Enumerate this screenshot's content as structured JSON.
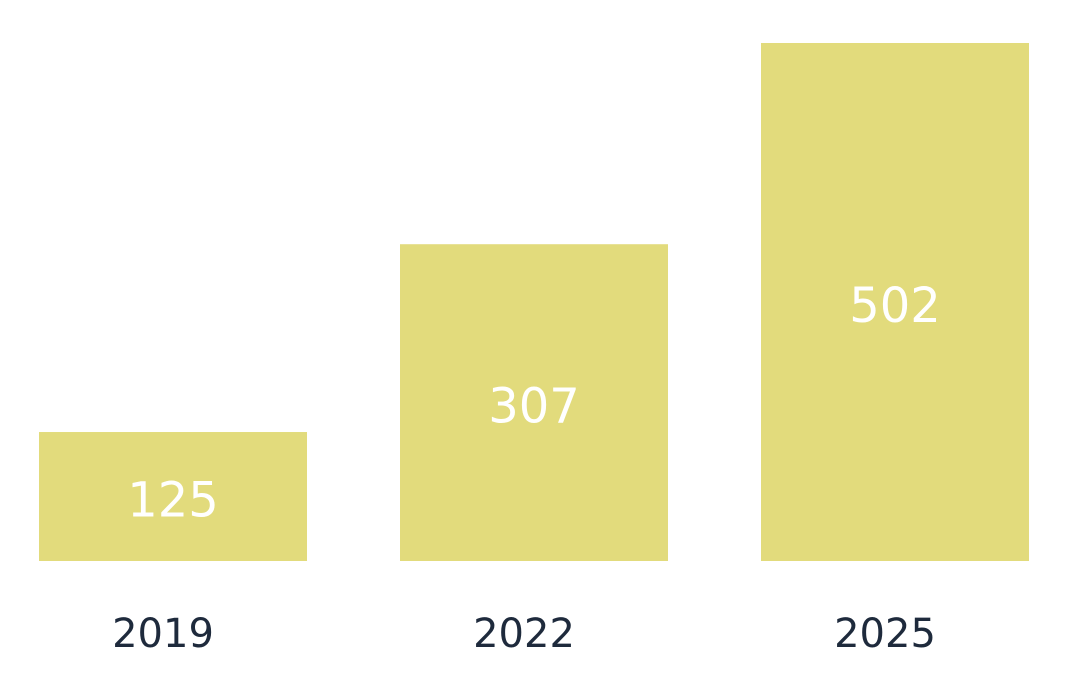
{
  "chart_data": {
    "type": "bar",
    "categories": [
      "2019",
      "2022",
      "2025"
    ],
    "values": [
      125,
      307,
      502
    ],
    "title": "",
    "xlabel": "",
    "ylabel": "",
    "ylim": [
      0,
      502
    ],
    "grid": false,
    "legend": "none",
    "data_labels": "inside-center",
    "colors": {
      "bar": "#e2db7c",
      "bar_label": "#ffffff",
      "category_label": "#1e2a3c"
    }
  }
}
